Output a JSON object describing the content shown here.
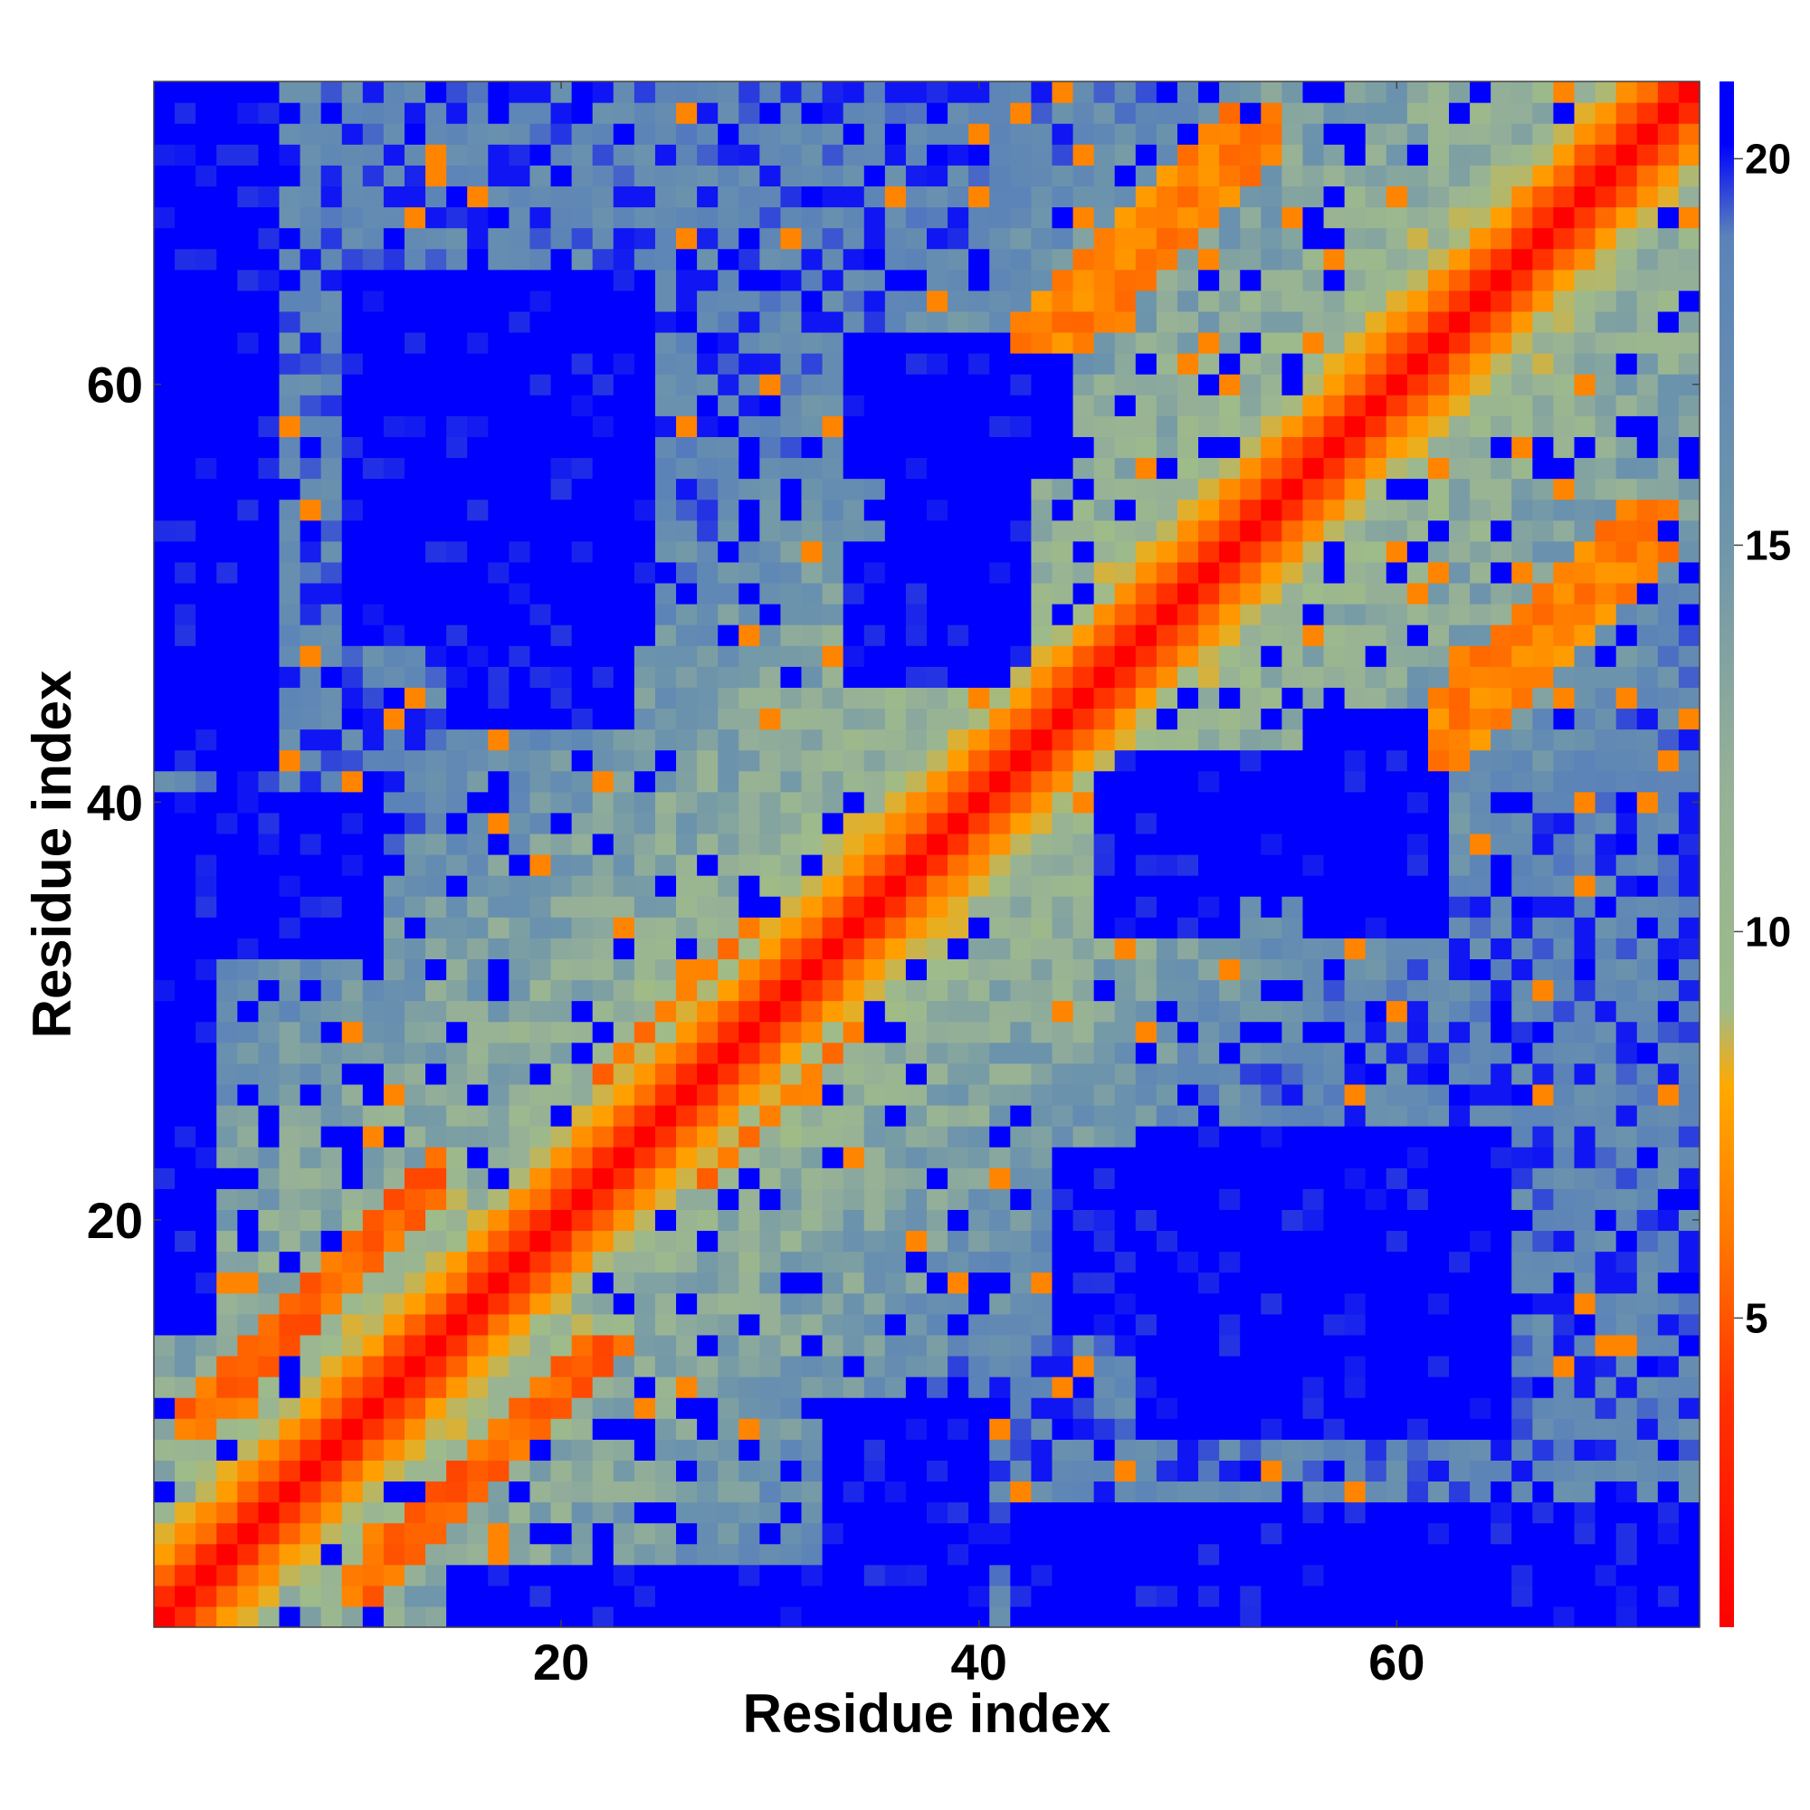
{
  "chart_data": {
    "type": "heatmap",
    "title": "",
    "xlabel": "Residue index",
    "ylabel": "Residue index",
    "n_residues": 74,
    "xlim": [
      1,
      74
    ],
    "ylim": [
      1,
      74
    ],
    "x_ticks": [
      20,
      40,
      60
    ],
    "y_ticks": [
      20,
      40,
      60
    ],
    "colorbar": {
      "range": [
        1,
        21
      ],
      "ticks": [
        5,
        10,
        15,
        20
      ],
      "stops": [
        {
          "value": 1,
          "color": "#ff0000"
        },
        {
          "value": 4,
          "color": "#ff3300"
        },
        {
          "value": 6,
          "color": "#ff7700"
        },
        {
          "value": 8,
          "color": "#ffaa00"
        },
        {
          "value": 9,
          "color": "#9ebb8a"
        },
        {
          "value": 12,
          "color": "#96b097"
        },
        {
          "value": 15,
          "color": "#6f96aa"
        },
        {
          "value": 19,
          "color": "#5b83b8"
        },
        {
          "value": 20.2,
          "color": "#0000ff"
        },
        {
          "value": 21,
          "color": "#0000ff"
        }
      ]
    },
    "grid": false,
    "legend": "colorbar-right",
    "features": {
      "diagonal_value": 1,
      "near_diagonal": [
        [
          1,
          3.8
        ],
        [
          2,
          5.5
        ],
        [
          3,
          7.2
        ],
        [
          4,
          8.6
        ]
      ],
      "helix_bands": [
        {
          "x": [
            10,
            24
          ],
          "y": [
            2,
            14
          ],
          "value": 5.5
        },
        {
          "x": [
            26,
            34
          ],
          "y": [
            22,
            30
          ],
          "value": 5.8
        },
        {
          "x": [
            44,
            54
          ],
          "y": [
            62,
            74
          ],
          "value": 6.5
        },
        {
          "x": [
            62,
            74
          ],
          "y": [
            42,
            52
          ],
          "value": 6.5
        }
      ],
      "far_regions": [
        {
          "x": [
            1,
            6
          ],
          "y": [
            42,
            74
          ],
          "value": 21
        },
        {
          "x": [
            15,
            23
          ],
          "y": [
            44,
            62
          ],
          "value": 21
        },
        {
          "x": [
            34,
            42
          ],
          "y": [
            46,
            52
          ],
          "value": 21
        },
        {
          "x": [
            36,
            42
          ],
          "y": [
            52,
            56
          ],
          "value": 21
        },
        {
          "x": [
            48,
            65
          ],
          "y": [
            10,
            24
          ],
          "value": 21
        },
        {
          "x": [
            48,
            74
          ],
          "y": [
            1,
            5
          ],
          "value": 21
        },
        {
          "x": [
            15,
            40
          ],
          "y": [
            1,
            3
          ],
          "value": 21
        },
        {
          "x": [
            33,
            40
          ],
          "y": [
            3,
            11
          ],
          "value": 21
        },
        {
          "x": [
            48,
            52
          ],
          "y": [
            34,
            42
          ],
          "value": 21
        },
        {
          "x": [
            56,
            62
          ],
          "y": [
            34,
            44
          ],
          "value": 21
        },
        {
          "x": [
            1,
            6
          ],
          "y": [
            1,
            6
          ],
          "value": 8
        }
      ]
    }
  }
}
